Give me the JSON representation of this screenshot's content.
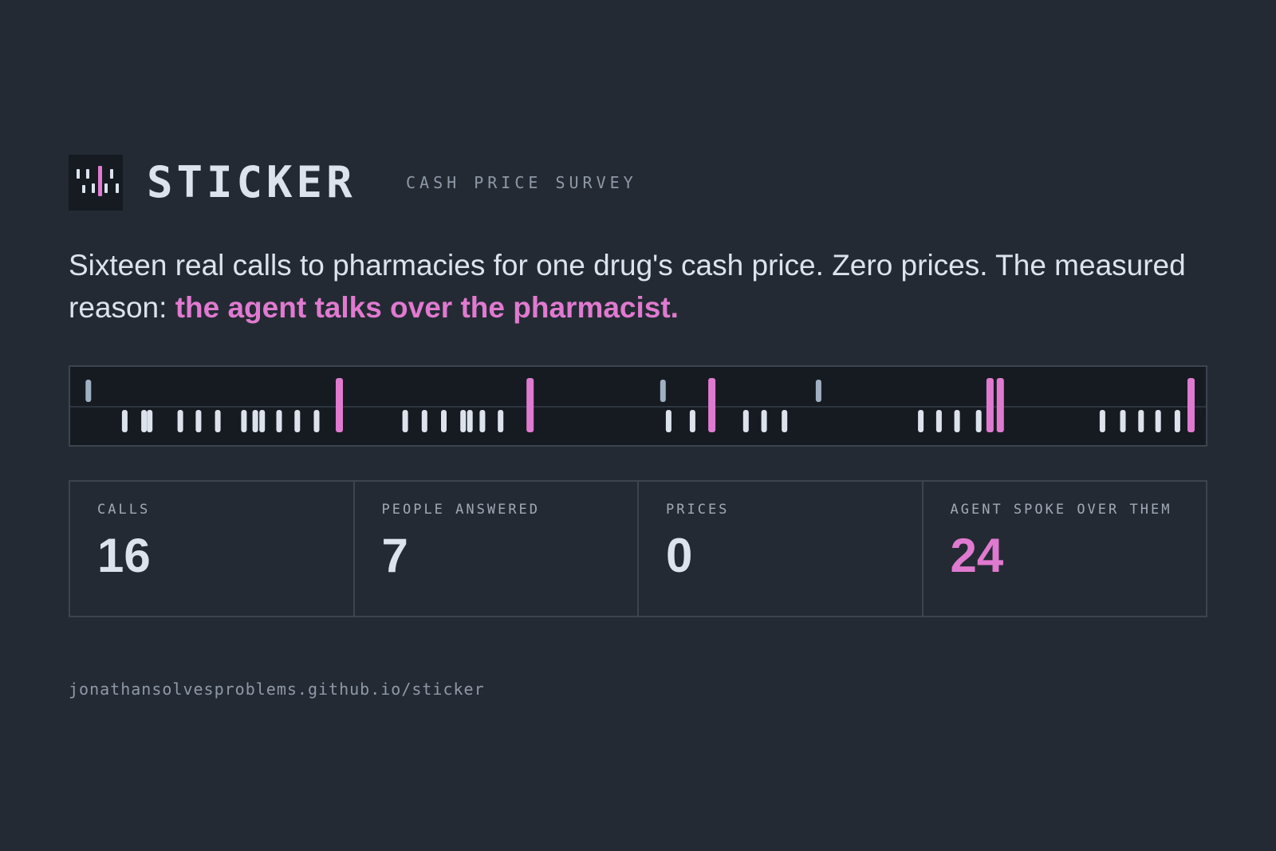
{
  "brand": {
    "title": "STICKER",
    "subtitle": "CASH PRICE SURVEY"
  },
  "headline": {
    "text": "Sixteen real calls to pharmacies for one drug's cash price. Zero prices. The measured reason: ",
    "accent": "the agent talks over the pharmacist."
  },
  "colors": {
    "background": "#242a33",
    "panel": "#161b22",
    "accent": "#e07ad0",
    "text": "#dde3ec",
    "muted": "#8e99a8",
    "event_marker": "#9fb0c2"
  },
  "timeline": {
    "description_legend": "top row: markers, bottom row: turns",
    "bars": [
      {
        "t": 0.016,
        "kind": "marker"
      },
      {
        "t": 0.048,
        "kind": "turn"
      },
      {
        "t": 0.065,
        "kind": "turn"
      },
      {
        "t": 0.07,
        "kind": "turn"
      },
      {
        "t": 0.097,
        "kind": "turn"
      },
      {
        "t": 0.113,
        "kind": "turn"
      },
      {
        "t": 0.13,
        "kind": "turn"
      },
      {
        "t": 0.153,
        "kind": "turn"
      },
      {
        "t": 0.163,
        "kind": "turn"
      },
      {
        "t": 0.169,
        "kind": "turn"
      },
      {
        "t": 0.184,
        "kind": "turn"
      },
      {
        "t": 0.2,
        "kind": "turn"
      },
      {
        "t": 0.217,
        "kind": "turn"
      },
      {
        "t": 0.237,
        "kind": "overlap"
      },
      {
        "t": 0.295,
        "kind": "turn"
      },
      {
        "t": 0.312,
        "kind": "turn"
      },
      {
        "t": 0.329,
        "kind": "turn"
      },
      {
        "t": 0.346,
        "kind": "turn"
      },
      {
        "t": 0.352,
        "kind": "turn"
      },
      {
        "t": 0.363,
        "kind": "turn"
      },
      {
        "t": 0.379,
        "kind": "turn"
      },
      {
        "t": 0.405,
        "kind": "overlap"
      },
      {
        "t": 0.522,
        "kind": "marker"
      },
      {
        "t": 0.527,
        "kind": "turn"
      },
      {
        "t": 0.548,
        "kind": "turn"
      },
      {
        "t": 0.565,
        "kind": "overlap"
      },
      {
        "t": 0.595,
        "kind": "turn"
      },
      {
        "t": 0.611,
        "kind": "turn"
      },
      {
        "t": 0.629,
        "kind": "turn"
      },
      {
        "t": 0.659,
        "kind": "marker"
      },
      {
        "t": 0.749,
        "kind": "turn"
      },
      {
        "t": 0.765,
        "kind": "turn"
      },
      {
        "t": 0.781,
        "kind": "turn"
      },
      {
        "t": 0.8,
        "kind": "turn"
      },
      {
        "t": 0.81,
        "kind": "overlap"
      },
      {
        "t": 0.819,
        "kind": "overlap"
      },
      {
        "t": 0.909,
        "kind": "turn"
      },
      {
        "t": 0.927,
        "kind": "turn"
      },
      {
        "t": 0.943,
        "kind": "turn"
      },
      {
        "t": 0.958,
        "kind": "turn"
      },
      {
        "t": 0.975,
        "kind": "turn"
      },
      {
        "t": 0.987,
        "kind": "overlap"
      }
    ]
  },
  "stats": [
    {
      "label": "CALLS",
      "value": "16",
      "accent": false
    },
    {
      "label": "PEOPLE ANSWERED",
      "value": "7",
      "accent": false
    },
    {
      "label": "PRICES",
      "value": "0",
      "accent": false
    },
    {
      "label": "AGENT SPOKE OVER THEM",
      "value": "24",
      "accent": true
    }
  ],
  "footer": {
    "url": "jonathansolvesproblems.github.io/sticker"
  }
}
